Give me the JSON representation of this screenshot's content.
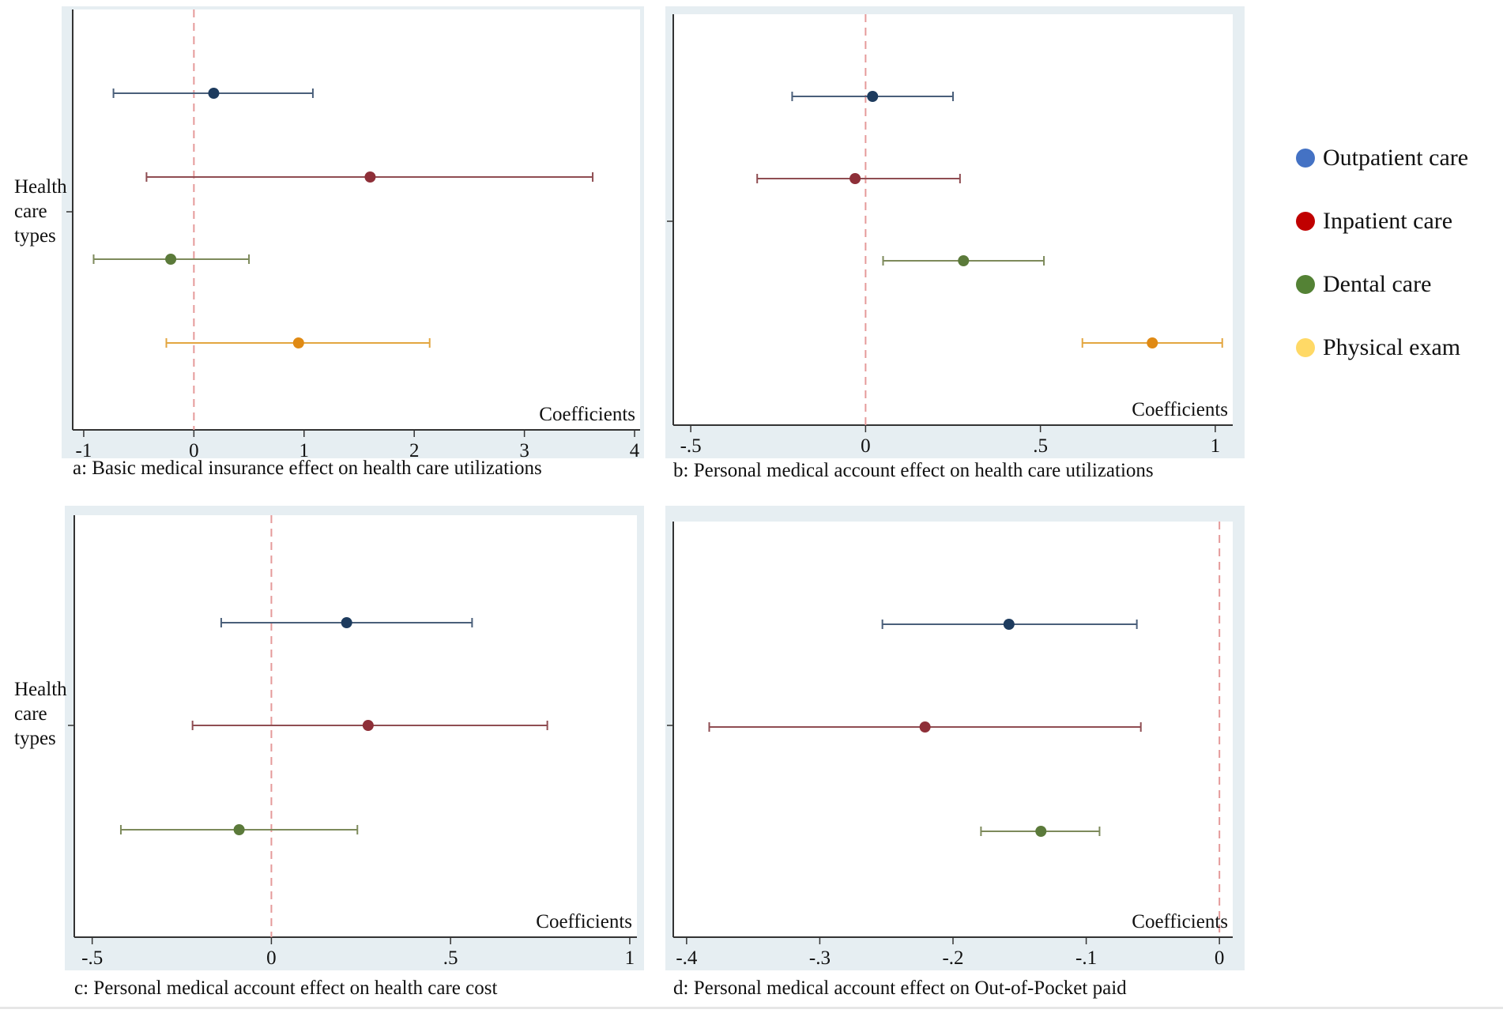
{
  "chart_data": [
    {
      "type": "scatter",
      "id": "a",
      "caption": "a: Basic medical insurance effect on health care utilizations",
      "ylabel": "Health care types",
      "xlabel": "Coefficients",
      "xlim": [
        -1.1,
        4.05
      ],
      "ticks": [
        -1,
        0,
        1,
        2,
        3,
        4
      ],
      "tick_labels": [
        "-1",
        "0",
        "1",
        "2",
        "3",
        "4"
      ],
      "reference_line": 0,
      "series": [
        {
          "name": "Outpatient care",
          "estimate": 0.18,
          "ci": [
            -0.73,
            1.08
          ]
        },
        {
          "name": "Inpatient care",
          "estimate": 1.6,
          "ci": [
            -0.43,
            3.62
          ]
        },
        {
          "name": "Dental care",
          "estimate": -0.21,
          "ci": [
            -0.91,
            0.5
          ]
        },
        {
          "name": "Physical exam",
          "estimate": 0.95,
          "ci": [
            -0.25,
            2.14
          ]
        }
      ]
    },
    {
      "type": "scatter",
      "id": "b",
      "caption": "b: Personal medical account effect on health care utilizations",
      "ylabel": "",
      "xlabel": "Coefficients",
      "xlim": [
        -0.55,
        1.05
      ],
      "ticks": [
        -0.5,
        0,
        0.5,
        1
      ],
      "tick_labels": [
        "-.5",
        "0",
        ".5",
        "1"
      ],
      "reference_line": 0,
      "series": [
        {
          "name": "Outpatient care",
          "estimate": 0.02,
          "ci": [
            -0.21,
            0.25
          ]
        },
        {
          "name": "Inpatient care",
          "estimate": -0.03,
          "ci": [
            -0.31,
            0.27
          ]
        },
        {
          "name": "Dental care",
          "estimate": 0.28,
          "ci": [
            0.05,
            0.51
          ]
        },
        {
          "name": "Physical exam",
          "estimate": 0.82,
          "ci": [
            0.62,
            1.02
          ]
        }
      ]
    },
    {
      "type": "scatter",
      "id": "c",
      "caption": "c: Personal medical account effect on health care cost",
      "ylabel": "Health care types",
      "xlabel": "Coefficients",
      "xlim": [
        -0.55,
        1.02
      ],
      "ticks": [
        -0.5,
        0,
        0.5,
        1
      ],
      "tick_labels": [
        "-.5",
        "0",
        ".5",
        "1"
      ],
      "reference_line": 0,
      "series": [
        {
          "name": "Outpatient care",
          "estimate": 0.21,
          "ci": [
            -0.14,
            0.56
          ]
        },
        {
          "name": "Inpatient care",
          "estimate": 0.27,
          "ci": [
            -0.22,
            0.77
          ]
        },
        {
          "name": "Dental care",
          "estimate": -0.09,
          "ci": [
            -0.42,
            0.24
          ]
        }
      ]
    },
    {
      "type": "scatter",
      "id": "d",
      "caption": "d: Personal medical account effect on Out-of-Pocket paid",
      "ylabel": "",
      "xlabel": "Coefficients",
      "xlim": [
        -0.41,
        0.01
      ],
      "ticks": [
        -0.4,
        -0.3,
        -0.2,
        -0.1,
        0
      ],
      "tick_labels": [
        "-.4",
        "-.3",
        "-.2",
        "-.1",
        "0"
      ],
      "reference_line": 0,
      "series": [
        {
          "name": "Outpatient care",
          "estimate": -0.158,
          "ci": [
            -0.253,
            -0.062
          ]
        },
        {
          "name": "Inpatient care",
          "estimate": -0.221,
          "ci": [
            -0.383,
            -0.059
          ]
        },
        {
          "name": "Dental care",
          "estimate": -0.134,
          "ci": [
            -0.179,
            -0.09
          ]
        }
      ]
    }
  ],
  "legend": {
    "items": [
      {
        "label": "Outpatient care",
        "color": "#4472C4"
      },
      {
        "label": "Inpatient care",
        "color": "#C00000"
      },
      {
        "label": "Dental care",
        "color": "#548235"
      },
      {
        "label": "Physical exam",
        "color": "#FFD966"
      }
    ]
  },
  "colors": {
    "Outpatient care": {
      "line": "#4a5f7a",
      "dot": "#1d3b5e"
    },
    "Inpatient care": {
      "line": "#8f4d52",
      "dot": "#8e2f38"
    },
    "Dental care": {
      "line": "#7d8a5b",
      "dot": "#5b7a3a"
    },
    "Physical exam": {
      "line": "#e3a640",
      "dot": "#e08a14"
    },
    "reference": "#e59a9a",
    "panel_background": "#e6eef2",
    "plot_background": "#ffffff"
  }
}
